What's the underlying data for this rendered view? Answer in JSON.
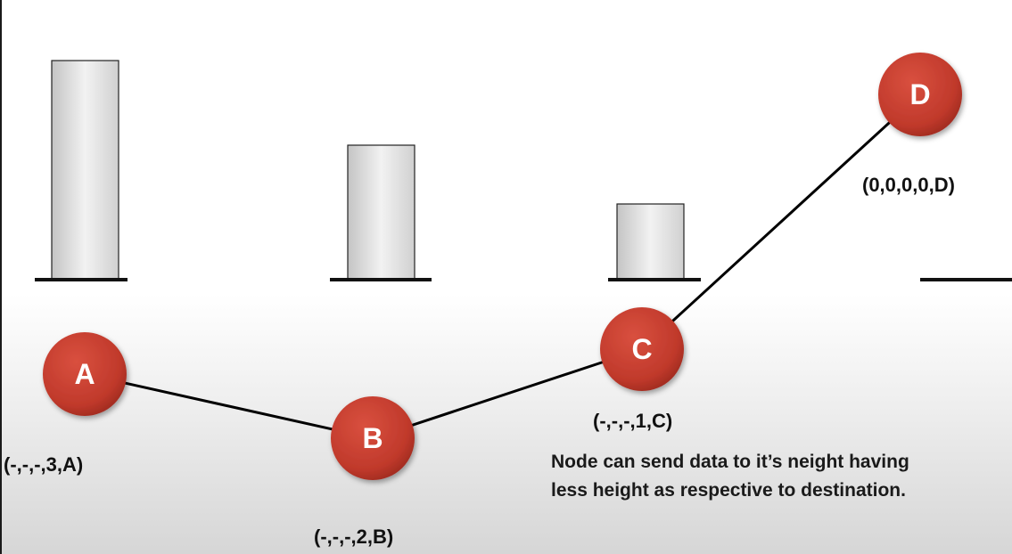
{
  "nodes": [
    {
      "id": "A",
      "label": "A",
      "tuple": "(-,-,-,3,A)",
      "height": 3
    },
    {
      "id": "B",
      "label": "B",
      "tuple": "(-,-,-,2,B)",
      "height": 2
    },
    {
      "id": "C",
      "label": "C",
      "tuple": "(-,-,-,1,C)",
      "height": 1
    },
    {
      "id": "D",
      "label": "D",
      "tuple": "(0,0,0,0,D)",
      "height": 0
    }
  ],
  "edges": [
    [
      "A",
      "B"
    ],
    [
      "B",
      "C"
    ],
    [
      "C",
      "D"
    ]
  ],
  "note": "Node can send data to it’s neight having less height as respective to destination.",
  "colors": {
    "node": "#c0392b",
    "bar": "#e3e3e3",
    "line": "#000000"
  }
}
